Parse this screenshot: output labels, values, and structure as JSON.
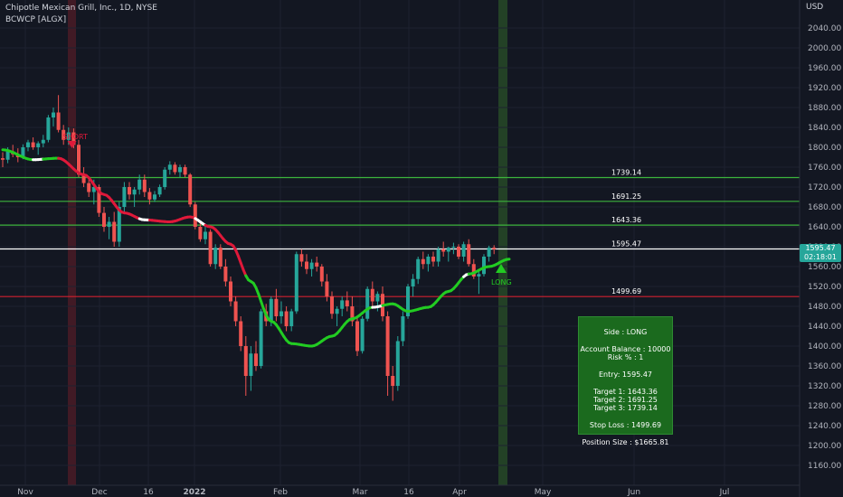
{
  "header": {
    "title": "Chipotle Mexican Grill, Inc., 1D, NYSE",
    "indicator": "BCWCP [ALGX]"
  },
  "axis": {
    "currency_label": "USD",
    "price_ticks": [
      "2040.00",
      "2000.00",
      "1960.00",
      "1920.00",
      "1880.00",
      "1840.00",
      "1800.00",
      "1760.00",
      "1720.00",
      "1680.00",
      "1640.00",
      "1600.00",
      "1560.00",
      "1520.00",
      "1480.00",
      "1440.00",
      "1400.00",
      "1360.00",
      "1320.00",
      "1280.00",
      "1240.00",
      "1200.00",
      "1160.00"
    ],
    "date_ticks": [
      "Nov",
      "Dec",
      "16",
      "2022",
      "Feb",
      "Mar",
      "16",
      "Apr",
      "May",
      "Jun",
      "Jul"
    ]
  },
  "levels": {
    "target3": "1739.14",
    "target2": "1691.25",
    "target1": "1643.36",
    "entry": "1595.47",
    "stop": "1499.69"
  },
  "markers": {
    "short_label": "SHORT",
    "long_label": "LONG"
  },
  "price_tag": {
    "price": "1595.47",
    "countdown": "02:18:01"
  },
  "panel": {
    "side": "Side : LONG",
    "balance": "Account Balance : 10000",
    "risk": "Risk % : 1",
    "entry": "Entry: 1595.47",
    "t1": "Target 1: 1643.36",
    "t2": "Target 2: 1691.25",
    "t3": "Target 3: 1739.14",
    "stop": "Stop Loss : 1499.69",
    "size": "Position Size : $1665.81"
  },
  "colors": {
    "background": "#131722",
    "up": "#26a69a",
    "down": "#ef5350",
    "ma_up": "#22cc22",
    "ma_down": "#e0193a",
    "target_line": "#3cb43c",
    "entry_line": "#ffffff",
    "stop_line": "#d0202f"
  },
  "chart_data": {
    "type": "candlestick",
    "symbol": "CMG",
    "interval": "1D",
    "ylim": [
      1140,
      2060
    ],
    "candles": [
      [
        1778,
        1790,
        1760,
        1775
      ],
      [
        1775,
        1800,
        1768,
        1792
      ],
      [
        1792,
        1805,
        1780,
        1786
      ],
      [
        1786,
        1798,
        1770,
        1780
      ],
      [
        1780,
        1806,
        1776,
        1800
      ],
      [
        1800,
        1815,
        1792,
        1810
      ],
      [
        1810,
        1820,
        1795,
        1800
      ],
      [
        1800,
        1812,
        1785,
        1808
      ],
      [
        1808,
        1825,
        1800,
        1815
      ],
      [
        1815,
        1865,
        1810,
        1860
      ],
      [
        1860,
        1880,
        1842,
        1870
      ],
      [
        1870,
        1905,
        1830,
        1835
      ],
      [
        1835,
        1845,
        1805,
        1815
      ],
      [
        1815,
        1840,
        1805,
        1830
      ],
      [
        1830,
        1838,
        1798,
        1805
      ],
      [
        1805,
        1815,
        1740,
        1745
      ],
      [
        1745,
        1760,
        1720,
        1728
      ],
      [
        1728,
        1740,
        1700,
        1710
      ],
      [
        1710,
        1735,
        1685,
        1720
      ],
      [
        1720,
        1725,
        1660,
        1668
      ],
      [
        1668,
        1680,
        1630,
        1640
      ],
      [
        1640,
        1660,
        1615,
        1650
      ],
      [
        1650,
        1670,
        1600,
        1610
      ],
      [
        1610,
        1690,
        1600,
        1680
      ],
      [
        1680,
        1730,
        1670,
        1720
      ],
      [
        1720,
        1730,
        1695,
        1705
      ],
      [
        1705,
        1720,
        1680,
        1715
      ],
      [
        1715,
        1745,
        1705,
        1735
      ],
      [
        1735,
        1745,
        1700,
        1710
      ],
      [
        1710,
        1718,
        1685,
        1695
      ],
      [
        1695,
        1712,
        1690,
        1705
      ],
      [
        1705,
        1725,
        1700,
        1720
      ],
      [
        1720,
        1760,
        1715,
        1755
      ],
      [
        1755,
        1772,
        1745,
        1765
      ],
      [
        1765,
        1770,
        1745,
        1750
      ],
      [
        1750,
        1765,
        1740,
        1760
      ],
      [
        1760,
        1765,
        1740,
        1745
      ],
      [
        1745,
        1748,
        1680,
        1685
      ],
      [
        1685,
        1690,
        1635,
        1640
      ],
      [
        1640,
        1650,
        1610,
        1615
      ],
      [
        1615,
        1640,
        1605,
        1630
      ],
      [
        1630,
        1635,
        1560,
        1565
      ],
      [
        1565,
        1605,
        1555,
        1598
      ],
      [
        1598,
        1605,
        1555,
        1560
      ],
      [
        1560,
        1575,
        1520,
        1530
      ],
      [
        1530,
        1540,
        1480,
        1490
      ],
      [
        1490,
        1500,
        1440,
        1450
      ],
      [
        1450,
        1460,
        1390,
        1400
      ],
      [
        1400,
        1420,
        1300,
        1340
      ],
      [
        1340,
        1400,
        1310,
        1385
      ],
      [
        1385,
        1410,
        1350,
        1360
      ],
      [
        1360,
        1475,
        1355,
        1470
      ],
      [
        1470,
        1485,
        1440,
        1450
      ],
      [
        1450,
        1500,
        1440,
        1495
      ],
      [
        1495,
        1515,
        1450,
        1460
      ],
      [
        1460,
        1490,
        1445,
        1470
      ],
      [
        1470,
        1480,
        1430,
        1440
      ],
      [
        1440,
        1475,
        1430,
        1470
      ],
      [
        1470,
        1590,
        1465,
        1585
      ],
      [
        1585,
        1595,
        1560,
        1570
      ],
      [
        1570,
        1585,
        1545,
        1555
      ],
      [
        1555,
        1575,
        1540,
        1568
      ],
      [
        1568,
        1580,
        1550,
        1560
      ],
      [
        1560,
        1565,
        1520,
        1530
      ],
      [
        1530,
        1545,
        1490,
        1500
      ],
      [
        1500,
        1510,
        1455,
        1465
      ],
      [
        1465,
        1480,
        1440,
        1475
      ],
      [
        1475,
        1500,
        1460,
        1492
      ],
      [
        1492,
        1510,
        1470,
        1480
      ],
      [
        1480,
        1500,
        1440,
        1450
      ],
      [
        1450,
        1460,
        1380,
        1390
      ],
      [
        1390,
        1460,
        1385,
        1455
      ],
      [
        1455,
        1520,
        1450,
        1515
      ],
      [
        1515,
        1530,
        1480,
        1490
      ],
      [
        1490,
        1510,
        1470,
        1505
      ],
      [
        1505,
        1520,
        1450,
        1460
      ],
      [
        1460,
        1470,
        1300,
        1340
      ],
      [
        1340,
        1360,
        1290,
        1320
      ],
      [
        1320,
        1420,
        1310,
        1410
      ],
      [
        1410,
        1470,
        1400,
        1460
      ],
      [
        1460,
        1525,
        1455,
        1520
      ],
      [
        1520,
        1545,
        1500,
        1535
      ],
      [
        1535,
        1580,
        1525,
        1575
      ],
      [
        1575,
        1590,
        1555,
        1565
      ],
      [
        1565,
        1585,
        1550,
        1580
      ],
      [
        1580,
        1590,
        1560,
        1570
      ],
      [
        1570,
        1600,
        1560,
        1595
      ],
      [
        1595,
        1610,
        1580,
        1590
      ],
      [
        1590,
        1600,
        1570,
        1598
      ],
      [
        1598,
        1608,
        1585,
        1600
      ],
      [
        1600,
        1605,
        1575,
        1580
      ],
      [
        1580,
        1610,
        1570,
        1605
      ],
      [
        1605,
        1615,
        1560,
        1565
      ],
      [
        1565,
        1575,
        1535,
        1540
      ],
      [
        1540,
        1550,
        1505,
        1545
      ],
      [
        1545,
        1585,
        1540,
        1580
      ],
      [
        1580,
        1602,
        1570,
        1598
      ],
      [
        1598,
        1603,
        1585,
        1595
      ]
    ],
    "levels": [
      {
        "name": "Target 3",
        "value": 1739.14
      },
      {
        "name": "Target 2",
        "value": 1691.25
      },
      {
        "name": "Target 1",
        "value": 1643.36
      },
      {
        "name": "Entry",
        "value": 1595.47
      },
      {
        "name": "Stop Loss",
        "value": 1499.69
      }
    ],
    "signals": [
      {
        "label": "SHORT",
        "bar": 11
      },
      {
        "label": "LONG",
        "bar": 98
      }
    ],
    "moving_average": [
      [
        0,
        1795
      ],
      [
        6,
        1775
      ],
      [
        11,
        1778
      ],
      [
        16,
        1745
      ],
      [
        20,
        1705
      ],
      [
        24,
        1668
      ],
      [
        28,
        1654
      ],
      [
        33,
        1650
      ],
      [
        37,
        1660
      ],
      [
        41,
        1640
      ],
      [
        45,
        1605
      ],
      [
        49,
        1530
      ],
      [
        53,
        1450
      ],
      [
        57,
        1405
      ],
      [
        61,
        1400
      ],
      [
        65,
        1420
      ],
      [
        69,
        1455
      ],
      [
        73,
        1478
      ],
      [
        77,
        1485
      ],
      [
        80,
        1470
      ],
      [
        84,
        1478
      ],
      [
        88,
        1510
      ],
      [
        92,
        1545
      ],
      [
        96,
        1560
      ],
      [
        100,
        1575
      ]
    ],
    "ma_white_segments": [
      [
        6,
        8
      ],
      [
        27,
        29
      ],
      [
        38,
        40
      ],
      [
        73,
        75
      ],
      [
        91,
        92
      ]
    ],
    "ma_trend_changes": [
      [
        11,
        "down"
      ],
      [
        48,
        "up"
      ]
    ]
  }
}
